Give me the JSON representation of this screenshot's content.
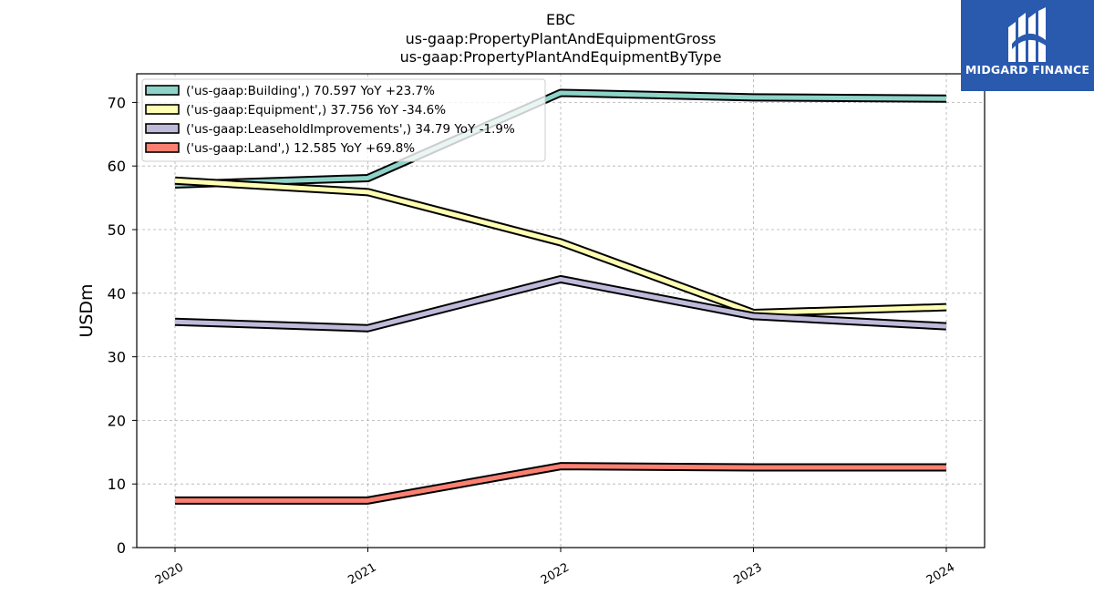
{
  "chart_data": {
    "type": "line",
    "title_lines": [
      "EBC",
      "us-gaap:PropertyPlantAndEquipmentGross",
      "us-gaap:PropertyPlantAndEquipmentByType"
    ],
    "xlabel": "",
    "ylabel": "USDm",
    "categories": [
      "2020",
      "2021",
      "2022",
      "2023",
      "2024"
    ],
    "ylim": [
      0,
      74.5
    ],
    "yticks": [
      0,
      10,
      20,
      30,
      40,
      50,
      60,
      70
    ],
    "grid": true,
    "legend_position": "top-left",
    "series": [
      {
        "name": "('us-gaap:Building',) 70.597 YoY +23.7%",
        "values": [
          57.1,
          58.1,
          71.5,
          70.8,
          70.6
        ],
        "color": "#8dd3c7"
      },
      {
        "name": "('us-gaap:Equipment',) 37.756 YoY -34.6%",
        "values": [
          57.7,
          55.9,
          48.0,
          36.9,
          37.8
        ],
        "color": "#ffffb3"
      },
      {
        "name": "('us-gaap:LeaseholdImprovements',) 34.79 YoY -1.9%",
        "values": [
          35.5,
          34.5,
          42.2,
          36.4,
          34.8
        ],
        "color": "#bebada"
      },
      {
        "name": "('us-gaap:Land',) 12.585 YoY +69.8%",
        "values": [
          7.4,
          7.4,
          12.8,
          12.6,
          12.6
        ],
        "color": "#fb8072"
      }
    ]
  },
  "logo": {
    "text": "MIDGARD FINANCE",
    "icon": "midgard-logo-icon"
  }
}
